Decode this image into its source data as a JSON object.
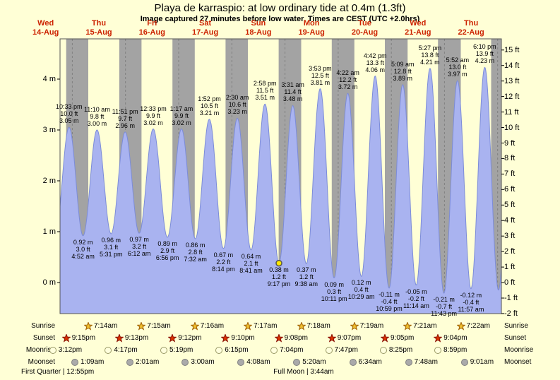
{
  "title": "Playa de karraspio: at low  ordinary tide at 0.4m (1.3ft)",
  "subtitle": "Image captured 27 minutes before low water. Times are CEST (UTC +2.0hrs)",
  "colors": {
    "background": "#ffffd6",
    "night_band": "#a3a3a3",
    "tide_fill": "#a9b3f0",
    "tide_line": "#7c8cd8",
    "day_label": "#cc2200",
    "marker_fill": "#ffe800",
    "axis": "#555555"
  },
  "days": [
    {
      "name": "Wed",
      "date": "14-Aug"
    },
    {
      "name": "Thu",
      "date": "15-Aug"
    },
    {
      "name": "Fri",
      "date": "16-Aug"
    },
    {
      "name": "Sat",
      "date": "17-Aug"
    },
    {
      "name": "Sun",
      "date": "18-Aug"
    },
    {
      "name": "Mon",
      "date": "19-Aug"
    },
    {
      "name": "Tue",
      "date": "20-Aug"
    },
    {
      "name": "Wed",
      "date": "21-Aug"
    },
    {
      "name": "Thu",
      "date": "22-Aug"
    }
  ],
  "axes": {
    "left": [
      "4 m",
      "3 m",
      "2 m",
      "1 m",
      "0 m"
    ],
    "right": [
      "15 ft",
      "14 ft",
      "13 ft",
      "12 ft",
      "11 ft",
      "10 ft",
      "9 ft",
      "8 ft",
      "7 ft",
      "6 ft",
      "5 ft",
      "4 ft",
      "3 ft",
      "2 ft",
      "1 ft",
      "0 ft",
      "-1 ft",
      "-2 ft"
    ]
  },
  "chart_data": {
    "type": "area",
    "title": "Playa de karraspio tide heights",
    "x_categories": [
      "Wed 14-Aug",
      "Thu 15-Aug",
      "Fri 16-Aug",
      "Sat 17-Aug",
      "Sun 18-Aug",
      "Mon 19-Aug",
      "Tue 20-Aug",
      "Wed 21-Aug",
      "Thu 22-Aug"
    ],
    "ylim_m": [
      -0.61,
      4.79
    ],
    "ylim_ft": [
      -2,
      15
    ],
    "tide_extremes": [
      {
        "kind": "high",
        "day": 0,
        "time": "10:33 pm",
        "ft": "10.0 ft",
        "m": "3.05 m"
      },
      {
        "kind": "low",
        "day": 1,
        "time": "4:52 am",
        "ft": "3.0 ft",
        "m": "0.92 m"
      },
      {
        "kind": "high",
        "day": 1,
        "time": "11:10 am",
        "ft": "9.8 ft",
        "m": "3.00 m"
      },
      {
        "kind": "low",
        "day": 1,
        "time": "5:31 pm",
        "ft": "3.1 ft",
        "m": "0.96 m"
      },
      {
        "kind": "high",
        "day": 1,
        "time": "11:51 pm",
        "ft": "9.7 ft",
        "m": "2.96 m"
      },
      {
        "kind": "low",
        "day": 2,
        "time": "6:12 am",
        "ft": "3.2 ft",
        "m": "0.97 m"
      },
      {
        "kind": "high",
        "day": 2,
        "time": "12:33 pm",
        "ft": "9.9 ft",
        "m": "3.02 m"
      },
      {
        "kind": "low",
        "day": 2,
        "time": "6:56 pm",
        "ft": "2.9 ft",
        "m": "0.89 m"
      },
      {
        "kind": "high",
        "day": 3,
        "time": "1:17 am",
        "ft": "9.9 ft",
        "m": "3.02 m"
      },
      {
        "kind": "low",
        "day": 3,
        "time": "7:32 am",
        "ft": "2.8 ft",
        "m": "0.86 m"
      },
      {
        "kind": "high",
        "day": 3,
        "time": "1:52 pm",
        "ft": "10.5 ft",
        "m": "3.21 m"
      },
      {
        "kind": "low",
        "day": 3,
        "time": "8:14 pm",
        "ft": "2.2 ft",
        "m": "0.67 m"
      },
      {
        "kind": "high",
        "day": 4,
        "time": "2:30 am",
        "ft": "10.6 ft",
        "m": "3.23 m"
      },
      {
        "kind": "low",
        "day": 4,
        "time": "8:41 am",
        "ft": "2.1 ft",
        "m": "0.64 m"
      },
      {
        "kind": "high",
        "day": 4,
        "time": "2:58 pm",
        "ft": "11.5 ft",
        "m": "3.51 m"
      },
      {
        "kind": "low",
        "day": 4,
        "time": "9:17 pm",
        "ft": "1.2 ft",
        "m": "0.38 m",
        "current": true
      },
      {
        "kind": "high",
        "day": 5,
        "time": "3:31 am",
        "ft": "11.4 ft",
        "m": "3.48 m"
      },
      {
        "kind": "low",
        "day": 5,
        "time": "9:38 am",
        "ft": "1.2 ft",
        "m": "0.37 m"
      },
      {
        "kind": "high",
        "day": 5,
        "time": "3:53 pm",
        "ft": "12.5 ft",
        "m": "3.81 m"
      },
      {
        "kind": "low",
        "day": 5,
        "time": "10:11 pm",
        "ft": "0.3 ft",
        "m": "0.09 m"
      },
      {
        "kind": "high",
        "day": 6,
        "time": "4:22 am",
        "ft": "12.2 ft",
        "m": "3.72 m"
      },
      {
        "kind": "low",
        "day": 6,
        "time": "10:29 am",
        "ft": "0.4 ft",
        "m": "0.12 m"
      },
      {
        "kind": "high",
        "day": 6,
        "time": "4:42 pm",
        "ft": "13.3 ft",
        "m": "4.06 m"
      },
      {
        "kind": "low",
        "day": 6,
        "time": "10:59 pm",
        "ft": "-0.4 ft",
        "m": "-0.11 m"
      },
      {
        "kind": "high",
        "day": 7,
        "time": "5:09 am",
        "ft": "12.8 ft",
        "m": "3.89 m"
      },
      {
        "kind": "low",
        "day": 7,
        "time": "11:14 am",
        "ft": "-0.2 ft",
        "m": "-0.05 m"
      },
      {
        "kind": "high",
        "day": 7,
        "time": "5:27 pm",
        "ft": "13.8 ft",
        "m": "4.21 m"
      },
      {
        "kind": "low",
        "day": 7,
        "time": "11:43 pm",
        "ft": "-0.7 ft",
        "m": "-0.21 m"
      },
      {
        "kind": "high",
        "day": 8,
        "time": "5:52 am",
        "ft": "13.0 ft",
        "m": "3.97 m"
      },
      {
        "kind": "low",
        "day": 8,
        "time": "11:57 am",
        "ft": "-0.4 ft",
        "m": "-0.12 m"
      },
      {
        "kind": "high",
        "day": 8,
        "time": "6:10 pm",
        "ft": "13.9 ft",
        "m": "4.23 m"
      }
    ]
  },
  "sun_moon": {
    "rows": [
      {
        "label": "Sunrise",
        "icon": "sunrise",
        "shape": "star",
        "icon_fill": "#f0c030",
        "icon_stroke": "#a06000",
        "events": [
          {
            "day": 1,
            "time": "7:14am"
          },
          {
            "day": 2,
            "time": "7:15am"
          },
          {
            "day": 3,
            "time": "7:16am"
          },
          {
            "day": 4,
            "time": "7:17am"
          },
          {
            "day": 5,
            "time": "7:18am"
          },
          {
            "day": 6,
            "time": "7:19am"
          },
          {
            "day": 7,
            "time": "7:21am"
          },
          {
            "day": 8,
            "time": "7:22am"
          }
        ]
      },
      {
        "label": "Sunset",
        "icon": "sunset",
        "shape": "star",
        "icon_fill": "#dd3300",
        "icon_stroke": "#881100",
        "events": [
          {
            "day": 0,
            "time": "9:15pm"
          },
          {
            "day": 1,
            "time": "9:13pm"
          },
          {
            "day": 2,
            "time": "9:12pm"
          },
          {
            "day": 3,
            "time": "9:10pm"
          },
          {
            "day": 4,
            "time": "9:08pm"
          },
          {
            "day": 5,
            "time": "9:07pm"
          },
          {
            "day": 6,
            "time": "9:05pm"
          },
          {
            "day": 7,
            "time": "9:04pm"
          }
        ]
      },
      {
        "label": "Moonrise",
        "icon": "moonrise",
        "shape": "circle",
        "icon_fill": "#ffffdd",
        "icon_stroke": "#999966",
        "events": [
          {
            "day": 0,
            "time": "3:12pm"
          },
          {
            "day": 1,
            "time": "4:17pm"
          },
          {
            "day": 2,
            "time": "5:19pm"
          },
          {
            "day": 3,
            "time": "6:15pm"
          },
          {
            "day": 4,
            "time": "7:04pm"
          },
          {
            "day": 5,
            "time": "7:47pm"
          },
          {
            "day": 6,
            "time": "8:25pm"
          },
          {
            "day": 7,
            "time": "8:59pm"
          }
        ]
      },
      {
        "label": "Moonset",
        "icon": "moonset",
        "shape": "circle",
        "icon_fill": "#aaaaaa",
        "icon_stroke": "#808080",
        "events": [
          {
            "day": 1,
            "time": "1:09am"
          },
          {
            "day": 2,
            "time": "2:01am"
          },
          {
            "day": 3,
            "time": "3:00am"
          },
          {
            "day": 4,
            "time": "4:08am"
          },
          {
            "day": 5,
            "time": "5:20am"
          },
          {
            "day": 6,
            "time": "6:34am"
          },
          {
            "day": 7,
            "time": "7:48am"
          },
          {
            "day": 8,
            "time": "9:01am"
          }
        ]
      }
    ]
  },
  "footer": {
    "left": "First Quarter | 12:55pm",
    "center": "Full Moon | 3:44am"
  }
}
